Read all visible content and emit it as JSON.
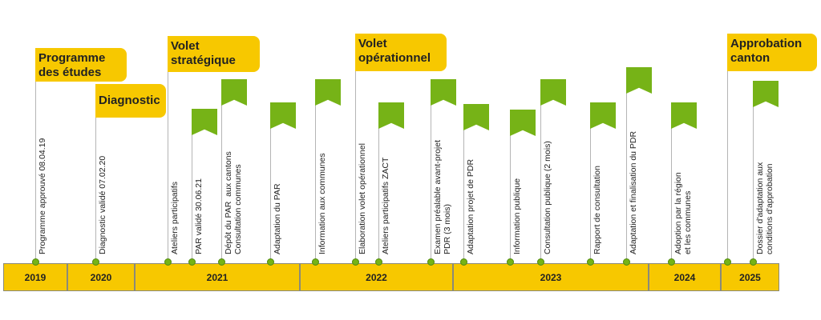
{
  "years": [
    "2019",
    "2020",
    "2021",
    "2022",
    "2023",
    "2024",
    "2025"
  ],
  "phases": {
    "programme": "Programme\ndes études",
    "diagnostic": "Diagnostic",
    "strategique": "Volet\nstratégique",
    "operationnel": "Volet\nopérationnel",
    "approbation": "Approbation\ncanton"
  },
  "milestones": {
    "m1": "Programme approuvé 08.04.19",
    "m2": "Diagnostic validé 07.02.20",
    "m3": "Ateliers participatifs",
    "m4": "PAR validé 30.06.21",
    "m5": "Dépôt du PAR  aux cantons\nConsultation communes",
    "m6": "Adaptation du PAR",
    "m7": "Information aux communes",
    "m8": "Elaboration volet opérationnel",
    "m9": "Ateliers participatifs ZACT",
    "m10": "Examen préalable avant-projet\nPDR (3 mois)",
    "m11": "Adaptation projet de PDR",
    "m12": "Information publique",
    "m13": "Consultation publique (2 mois)",
    "m14": "Rapport de consultation",
    "m15": "Adaptation et finalisation du PDR",
    "m16": "Adoption par la région\net les communes",
    "m17": "Dossier d'adaptation aux\nconditions d'approbation"
  },
  "colors": {
    "band": "#f7c800",
    "flag": "#76b317",
    "line": "#b5b5b5"
  }
}
